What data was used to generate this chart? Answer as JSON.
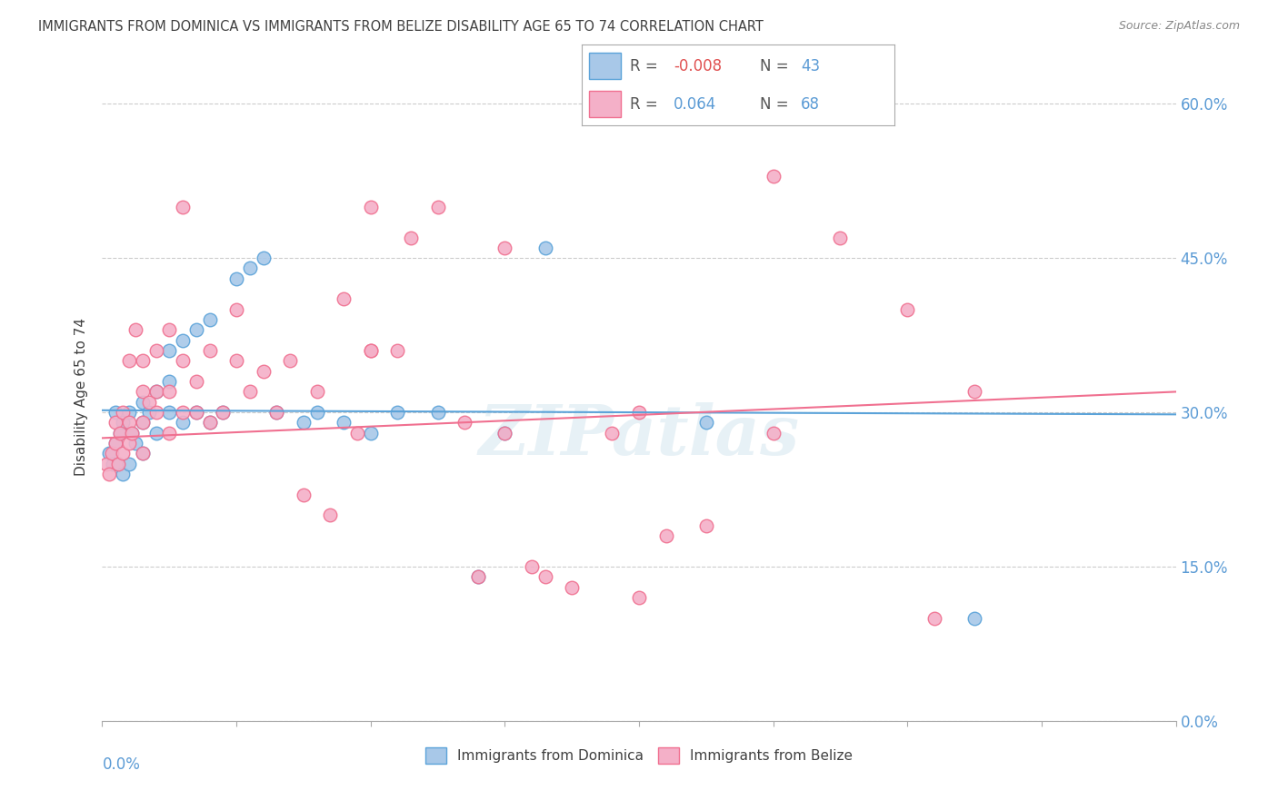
{
  "title": "IMMIGRANTS FROM DOMINICA VS IMMIGRANTS FROM BELIZE DISABILITY AGE 65 TO 74 CORRELATION CHART",
  "source": "Source: ZipAtlas.com",
  "ylabel": "Disability Age 65 to 74",
  "ytick_labels": [
    "0.0%",
    "15.0%",
    "30.0%",
    "45.0%",
    "60.0%"
  ],
  "ytick_values": [
    0.0,
    0.15,
    0.3,
    0.45,
    0.6
  ],
  "xlim": [
    0.0,
    0.08
  ],
  "ylim": [
    0.0,
    0.63
  ],
  "color_dominica": "#a8c8e8",
  "color_belize": "#f4b0c8",
  "color_line_dominica": "#5ba3d9",
  "color_line_belize": "#f07090",
  "color_title": "#404040",
  "color_axis_labels": "#5b9bd5",
  "watermark": "ZIPatlas",
  "r_dominica": -0.008,
  "n_dominica": 43,
  "r_belize": 0.064,
  "n_belize": 68,
  "dominica_x": [
    0.0005,
    0.0008,
    0.001,
    0.001,
    0.0012,
    0.0013,
    0.0015,
    0.0015,
    0.002,
    0.002,
    0.0022,
    0.0025,
    0.003,
    0.003,
    0.003,
    0.0035,
    0.004,
    0.004,
    0.005,
    0.005,
    0.005,
    0.006,
    0.006,
    0.007,
    0.007,
    0.008,
    0.008,
    0.009,
    0.01,
    0.011,
    0.012,
    0.013,
    0.015,
    0.016,
    0.018,
    0.02,
    0.022,
    0.025,
    0.028,
    0.03,
    0.033,
    0.045,
    0.065
  ],
  "dominica_y": [
    0.26,
    0.25,
    0.27,
    0.3,
    0.25,
    0.28,
    0.24,
    0.29,
    0.25,
    0.3,
    0.28,
    0.27,
    0.26,
    0.29,
    0.31,
    0.3,
    0.28,
    0.32,
    0.3,
    0.33,
    0.36,
    0.29,
    0.37,
    0.3,
    0.38,
    0.29,
    0.39,
    0.3,
    0.43,
    0.44,
    0.45,
    0.3,
    0.29,
    0.3,
    0.29,
    0.28,
    0.3,
    0.3,
    0.14,
    0.28,
    0.46,
    0.29,
    0.1
  ],
  "belize_x": [
    0.0003,
    0.0005,
    0.0007,
    0.001,
    0.001,
    0.0012,
    0.0013,
    0.0015,
    0.0015,
    0.002,
    0.002,
    0.002,
    0.0022,
    0.0025,
    0.003,
    0.003,
    0.003,
    0.003,
    0.0035,
    0.004,
    0.004,
    0.004,
    0.005,
    0.005,
    0.005,
    0.006,
    0.006,
    0.007,
    0.007,
    0.008,
    0.008,
    0.009,
    0.01,
    0.011,
    0.012,
    0.013,
    0.014,
    0.015,
    0.016,
    0.017,
    0.018,
    0.019,
    0.02,
    0.02,
    0.022,
    0.023,
    0.025,
    0.027,
    0.028,
    0.03,
    0.032,
    0.033,
    0.035,
    0.038,
    0.04,
    0.04,
    0.042,
    0.045,
    0.05,
    0.05,
    0.055,
    0.06,
    0.062,
    0.006,
    0.01,
    0.02,
    0.03,
    0.065
  ],
  "belize_y": [
    0.25,
    0.24,
    0.26,
    0.27,
    0.29,
    0.25,
    0.28,
    0.26,
    0.3,
    0.27,
    0.29,
    0.35,
    0.28,
    0.38,
    0.26,
    0.29,
    0.32,
    0.35,
    0.31,
    0.3,
    0.32,
    0.36,
    0.28,
    0.32,
    0.38,
    0.3,
    0.35,
    0.3,
    0.33,
    0.29,
    0.36,
    0.3,
    0.35,
    0.32,
    0.34,
    0.3,
    0.35,
    0.22,
    0.32,
    0.2,
    0.41,
    0.28,
    0.36,
    0.5,
    0.36,
    0.47,
    0.5,
    0.29,
    0.14,
    0.46,
    0.15,
    0.14,
    0.13,
    0.28,
    0.12,
    0.3,
    0.18,
    0.19,
    0.28,
    0.53,
    0.47,
    0.4,
    0.1,
    0.5,
    0.4,
    0.36,
    0.28,
    0.32
  ]
}
